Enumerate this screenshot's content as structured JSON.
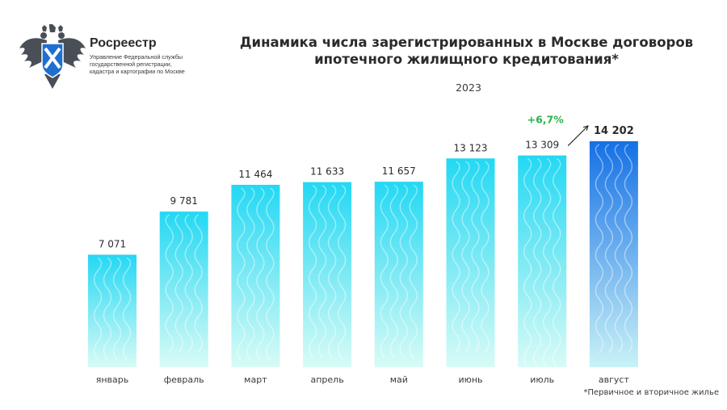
{
  "org": {
    "name": "Росреестр",
    "subtitle_lines": [
      "Управление Федеральной службы",
      "государственной регистрации,",
      "кадастра и картографии по Москве"
    ]
  },
  "footnote": "*Первичное и вторичное жилье",
  "colors": {
    "bar_top": "#23d8f3",
    "bar_bottom": "#d8fbf6",
    "bar_highlight_top": "#1570e6",
    "bar_highlight_bottom": "#c9f2f7",
    "growth": "#29b34a"
  },
  "icons": {
    "logo": "rosreestr-eagle-emblem",
    "arrow": "arrow-up-right"
  },
  "chart_data": {
    "type": "bar",
    "title_lines": [
      "Динамика числа зарегистрированных в Москве договоров",
      "ипотечного жилищного кредитования*"
    ],
    "subtitle": "2023",
    "categories": [
      "январь",
      "февраль",
      "март",
      "апрель",
      "май",
      "июнь",
      "июль",
      "август"
    ],
    "values": [
      7071,
      9781,
      11464,
      11633,
      11657,
      13123,
      13309,
      14202
    ],
    "value_labels": [
      "7 071",
      "9 781",
      "11 464",
      "11 633",
      "11 657",
      "13 123",
      "13 309",
      "14 202"
    ],
    "annotation": {
      "text": "+6,7%",
      "from": "июль",
      "to": "август"
    },
    "highlight_category": "август",
    "grid": false,
    "legend": "none"
  }
}
